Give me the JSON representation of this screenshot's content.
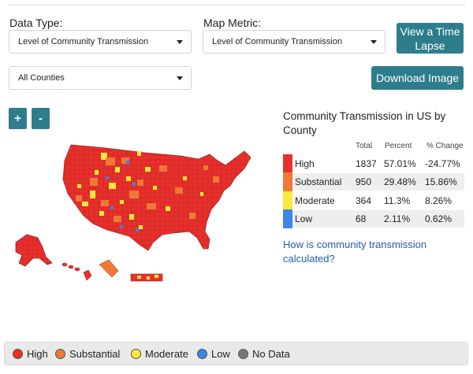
{
  "filters": {
    "data_type_label": "Data Type:",
    "data_type_value": "Level of Community Transmission",
    "map_metric_label": "Map Metric:",
    "map_metric_value": "Level of Community Transmission",
    "county_value": "All Counties"
  },
  "buttons": {
    "time_lapse_line1": "View a Time",
    "time_lapse_line2": "Lapse",
    "download": "Download Image",
    "zoom_in": "+",
    "zoom_out": "-"
  },
  "panel": {
    "title": "Community Transmission in US by County",
    "columns": {
      "total": "Total",
      "percent": "Percent",
      "change": "% Change"
    },
    "rows": [
      {
        "label": "High",
        "total": "1837",
        "percent": "57.01%",
        "change": "-24.77%",
        "color": "#e8302c"
      },
      {
        "label": "Substantial",
        "total": "950",
        "percent": "29.48%",
        "change": "15.86%",
        "color": "#ef7a37"
      },
      {
        "label": "Moderate",
        "total": "364",
        "percent": "11.3%",
        "change": "8.26%",
        "color": "#fbe83a"
      },
      {
        "label": "Low",
        "total": "68",
        "percent": "2.11%",
        "change": "0.62%",
        "color": "#3b86e6"
      }
    ],
    "link": "How is community transmission calculated?"
  },
  "legend": [
    {
      "label": "High",
      "color": "#e8302c"
    },
    {
      "label": "Substantial",
      "color": "#ef7a37"
    },
    {
      "label": "Moderate",
      "color": "#fbe83a"
    },
    {
      "label": "Low",
      "color": "#3b86e6"
    },
    {
      "label": "No Data",
      "color": "#777777"
    }
  ]
}
